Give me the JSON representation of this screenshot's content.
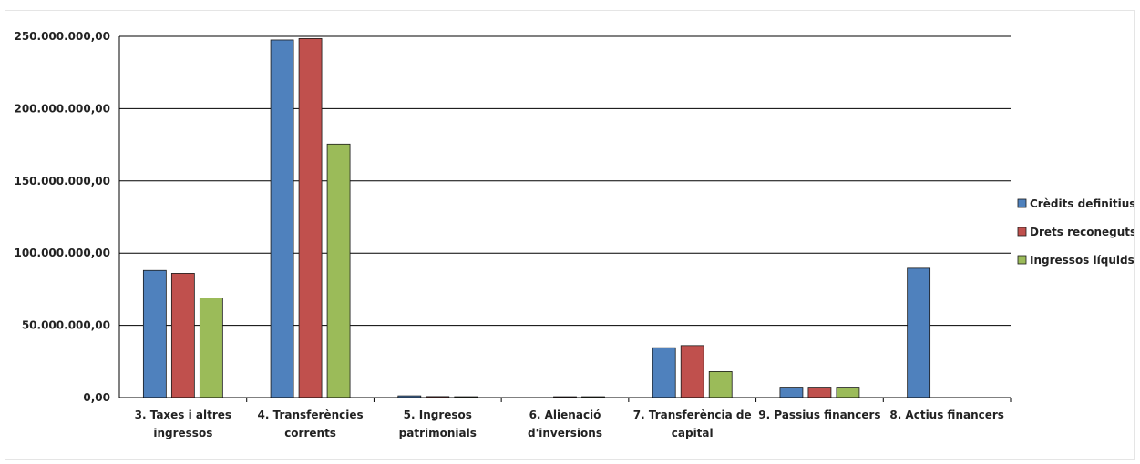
{
  "chart_data": {
    "type": "bar",
    "title": "",
    "xlabel": "",
    "ylabel": "",
    "ylim": [
      0,
      250000000
    ],
    "yticks": [
      0,
      50000000,
      100000000,
      150000000,
      200000000,
      250000000
    ],
    "ytick_labels": [
      "0,00",
      "50.000.000,00",
      "100.000.000,00",
      "150.000.000,00",
      "200.000.000,00",
      "250.000.000,00"
    ],
    "grid": true,
    "legend_position": "right",
    "categories": [
      [
        "3. Taxes i altres",
        "ingressos"
      ],
      [
        "4. Transferències",
        "corrents"
      ],
      [
        "5. Ingresos",
        "patrimonials"
      ],
      [
        "6. Alienació",
        "d'inversions"
      ],
      [
        "7. Transferència de",
        "capital"
      ],
      [
        "9. Passius financers"
      ],
      [
        "8. Actius financers"
      ]
    ],
    "series": [
      {
        "name": "Crèdits definitius",
        "color": "#4f81bd",
        "values": [
          88000000,
          247500000,
          1200000,
          0,
          34500000,
          7200000,
          89500000
        ]
      },
      {
        "name": "Drets reconeguts",
        "color": "#c0504d",
        "values": [
          86000000,
          248500000,
          700000,
          600000,
          36000000,
          7200000,
          0
        ]
      },
      {
        "name": "Ingressos líquids",
        "color": "#9bbb59",
        "values": [
          69000000,
          175500000,
          600000,
          600000,
          18000000,
          7200000,
          0
        ]
      }
    ]
  }
}
